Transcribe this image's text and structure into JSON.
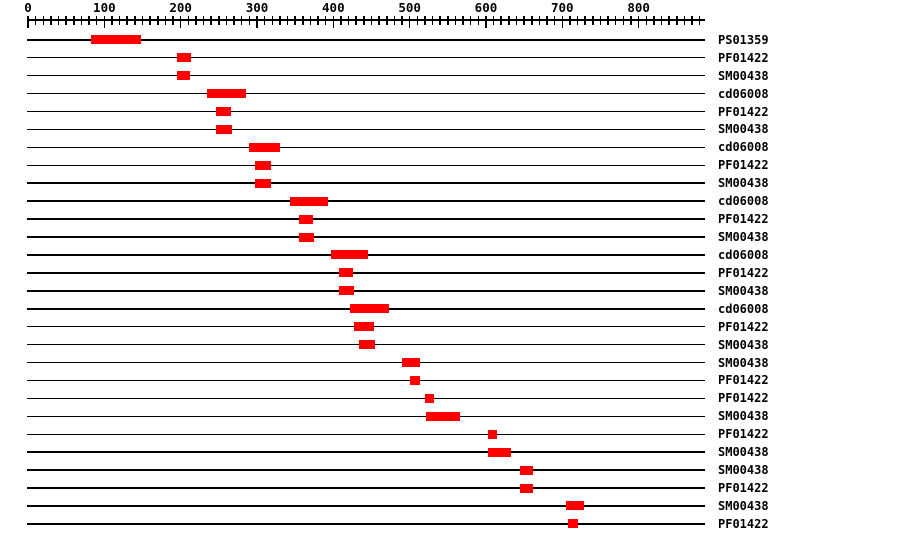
{
  "chart_data": {
    "type": "bar",
    "subtype": "horizontal-domain-ranges",
    "title": "",
    "xlabel": "",
    "ylabel": "",
    "legend": "none",
    "grid": false,
    "axis": {
      "min": 0,
      "max": 880,
      "minor_tick_step": 10,
      "major_tick_step": 100,
      "major_tick_labels": [
        "0",
        "100",
        "200",
        "300",
        "400",
        "500",
        "600",
        "700",
        "800"
      ]
    },
    "sequence_length": 887,
    "rows": [
      {
        "label": "PS01359",
        "start": 82,
        "end": 148
      },
      {
        "label": "PF01422",
        "start": 195,
        "end": 213
      },
      {
        "label": "SM00438",
        "start": 195,
        "end": 212
      },
      {
        "label": "cd06008",
        "start": 235,
        "end": 285
      },
      {
        "label": "PF01422",
        "start": 246,
        "end": 266
      },
      {
        "label": "SM00438",
        "start": 246,
        "end": 267
      },
      {
        "label": "cd06008",
        "start": 289,
        "end": 330
      },
      {
        "label": "PF01422",
        "start": 298,
        "end": 318
      },
      {
        "label": "SM00438",
        "start": 298,
        "end": 319
      },
      {
        "label": "cd06008",
        "start": 343,
        "end": 393
      },
      {
        "label": "PF01422",
        "start": 355,
        "end": 373
      },
      {
        "label": "SM00438",
        "start": 355,
        "end": 375
      },
      {
        "label": "cd06008",
        "start": 397,
        "end": 445
      },
      {
        "label": "PF01422",
        "start": 407,
        "end": 426
      },
      {
        "label": "SM00438",
        "start": 407,
        "end": 427
      },
      {
        "label": "cd06008",
        "start": 422,
        "end": 473
      },
      {
        "label": "PF01422",
        "start": 427,
        "end": 453
      },
      {
        "label": "SM00438",
        "start": 434,
        "end": 454
      },
      {
        "label": "SM00438",
        "start": 490,
        "end": 513
      },
      {
        "label": "PF01422",
        "start": 501,
        "end": 513
      },
      {
        "label": "PF01422",
        "start": 520,
        "end": 532
      },
      {
        "label": "SM00438",
        "start": 521,
        "end": 566
      },
      {
        "label": "PF01422",
        "start": 602,
        "end": 614
      },
      {
        "label": "SM00438",
        "start": 602,
        "end": 633
      },
      {
        "label": "SM00438",
        "start": 644,
        "end": 662
      },
      {
        "label": "PF01422",
        "start": 644,
        "end": 661
      },
      {
        "label": "SM00438",
        "start": 705,
        "end": 728
      },
      {
        "label": "PF01422",
        "start": 708,
        "end": 720
      }
    ]
  },
  "colors": {
    "hit_block": "#ff0000",
    "line": "#000000",
    "text": "#000000",
    "background": "#ffffff"
  }
}
